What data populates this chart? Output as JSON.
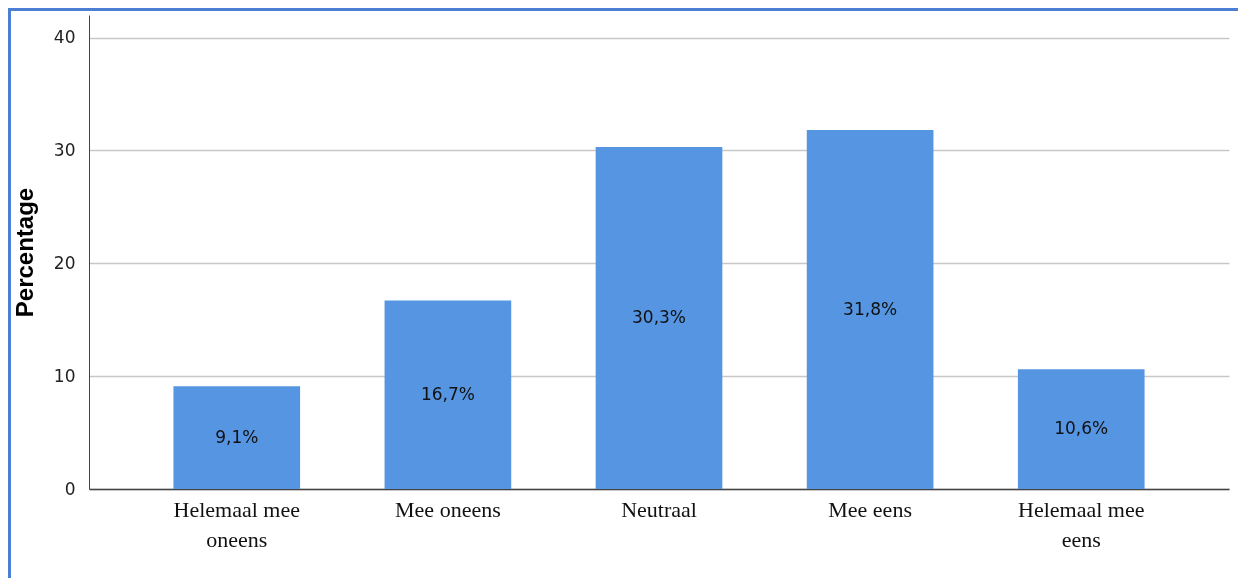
{
  "chart_data": {
    "type": "bar",
    "ylabel": "Percentage",
    "categories": [
      "Helemaal mee oneens",
      "Mee oneens",
      "Neutraal",
      "Mee eens",
      "Helemaal mee eens"
    ],
    "values": [
      9.1,
      16.7,
      30.3,
      31.8,
      10.6
    ],
    "value_labels": [
      "9,1%",
      "16,7%",
      "30,3%",
      "31,8%",
      "10,6%"
    ],
    "color": "#5595e2",
    "ylim": [
      0,
      42
    ],
    "yticks": [
      0,
      10,
      20,
      30,
      40
    ],
    "grid": "y"
  }
}
